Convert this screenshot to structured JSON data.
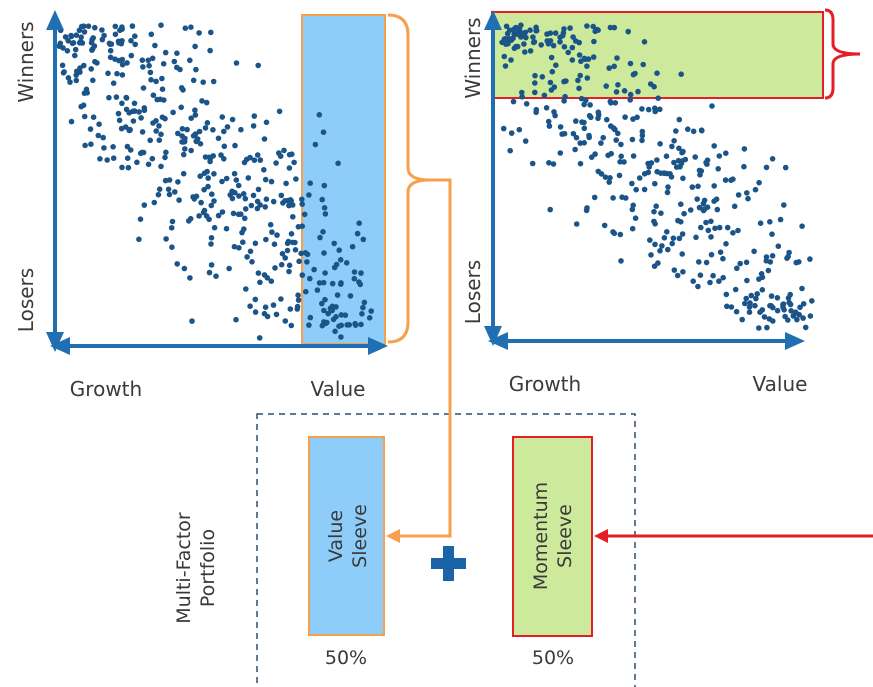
{
  "colors": {
    "axis": "#1f6fb2",
    "dot": "#1a5488",
    "value_fill": "#8ecdf9",
    "value_stroke": "#f6a04d",
    "momentum_fill": "#cdea9c",
    "momentum_stroke": "#e41e26",
    "plus": "#1a63a6",
    "dashed": "#2d4f73"
  },
  "left_plot": {
    "y_top_label": "Winners",
    "y_bottom_label": "Losers",
    "x_left_label": "Growth",
    "x_right_label": "Value"
  },
  "right_plot": {
    "y_top_label": "Winners",
    "y_bottom_label": "Losers",
    "x_left_label": "Growth",
    "x_right_label": "Value"
  },
  "portfolio": {
    "title_line1": "Multi-Factor",
    "title_line2": "Portfolio",
    "value_sleeve_line1": "Value",
    "value_sleeve_line2": "Sleeve",
    "value_weight": "50%",
    "momentum_sleeve_line1": "Momentum",
    "momentum_sleeve_line2": "Sleeve",
    "momentum_weight": "50%"
  }
}
